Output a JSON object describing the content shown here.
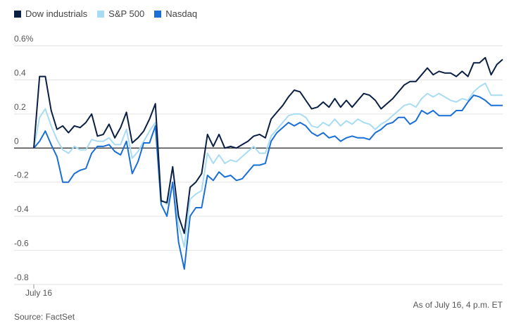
{
  "chart_data": {
    "type": "line",
    "title": "",
    "xlabel": "",
    "ylabel": "",
    "x_tick_label": "July 16",
    "ylim": [
      -0.8,
      0.6
    ],
    "y_ticks": [
      {
        "value": 0.6,
        "label": "0.6%"
      },
      {
        "value": 0.4,
        "label": "0.4"
      },
      {
        "value": 0.2,
        "label": "0.2"
      },
      {
        "value": 0,
        "label": "0"
      },
      {
        "value": -0.2,
        "label": "-0.2"
      },
      {
        "value": -0.4,
        "label": "-0.4"
      },
      {
        "value": -0.6,
        "label": "-0.6"
      },
      {
        "value": -0.8,
        "label": "-0.8"
      }
    ],
    "grid": true,
    "legend_position": "top-left",
    "series": [
      {
        "name": "Dow industrials",
        "color": "#0a1f44",
        "values": [
          0,
          0.42,
          0.42,
          0.22,
          0.11,
          0.13,
          0.09,
          0.13,
          0.12,
          0.15,
          0.2,
          0.07,
          0.08,
          0.14,
          0.06,
          0.12,
          0.21,
          0.03,
          0.06,
          0.1,
          0.17,
          0.26,
          -0.31,
          -0.32,
          -0.11,
          -0.4,
          -0.5,
          -0.23,
          -0.2,
          -0.15,
          0.08,
          0.01,
          0.08,
          0.0,
          0.01,
          0.0,
          0.02,
          0.04,
          0.07,
          0.08,
          0.06,
          0.17,
          0.21,
          0.25,
          0.3,
          0.34,
          0.33,
          0.28,
          0.23,
          0.24,
          0.27,
          0.24,
          0.29,
          0.24,
          0.28,
          0.24,
          0.28,
          0.32,
          0.31,
          0.28,
          0.23,
          0.26,
          0.29,
          0.33,
          0.37,
          0.39,
          0.39,
          0.43,
          0.47,
          0.43,
          0.45,
          0.44,
          0.44,
          0.42,
          0.45,
          0.42,
          0.5,
          0.5,
          0.53,
          0.43,
          0.49,
          0.52
        ]
      },
      {
        "name": "S&P 500",
        "color": "#a8dcf2",
        "values": [
          0,
          0.18,
          0.23,
          0.13,
          0.05,
          -0.01,
          -0.03,
          0.01,
          -0.01,
          -0.01,
          0.05,
          0.04,
          0.04,
          0.06,
          0.02,
          0.02,
          0.11,
          -0.06,
          -0.02,
          0.04,
          0.1,
          0.15,
          -0.3,
          -0.33,
          -0.21,
          -0.45,
          -0.58,
          -0.3,
          -0.27,
          -0.25,
          -0.03,
          -0.09,
          -0.04,
          -0.09,
          -0.07,
          -0.08,
          -0.05,
          -0.02,
          0.01,
          -0.03,
          -0.03,
          0.07,
          0.11,
          0.15,
          0.19,
          0.2,
          0.2,
          0.18,
          0.13,
          0.12,
          0.15,
          0.13,
          0.17,
          0.13,
          0.16,
          0.14,
          0.17,
          0.15,
          0.14,
          0.11,
          0.14,
          0.16,
          0.19,
          0.22,
          0.25,
          0.26,
          0.24,
          0.29,
          0.32,
          0.3,
          0.32,
          0.3,
          0.28,
          0.27,
          0.29,
          0.28,
          0.33,
          0.36,
          0.38,
          0.31,
          0.31,
          0.31
        ]
      },
      {
        "name": "Nasdaq",
        "color": "#1a6fd6",
        "values": [
          0,
          0.04,
          0.1,
          0.02,
          -0.05,
          -0.2,
          -0.2,
          -0.15,
          -0.13,
          -0.12,
          -0.03,
          0.01,
          0.01,
          0.02,
          -0.02,
          -0.04,
          0.04,
          -0.15,
          -0.08,
          0.03,
          0.03,
          0.13,
          -0.33,
          -0.4,
          -0.2,
          -0.55,
          -0.71,
          -0.4,
          -0.35,
          -0.35,
          -0.16,
          -0.19,
          -0.14,
          -0.17,
          -0.16,
          -0.19,
          -0.18,
          -0.14,
          -0.1,
          -0.1,
          -0.09,
          0.04,
          0.09,
          0.12,
          0.15,
          0.13,
          0.15,
          0.13,
          0.09,
          0.07,
          0.09,
          0.06,
          0.07,
          0.04,
          0.06,
          0.07,
          0.06,
          0.06,
          0.05,
          0.09,
          0.11,
          0.14,
          0.15,
          0.18,
          0.18,
          0.14,
          0.16,
          0.22,
          0.2,
          0.22,
          0.19,
          0.19,
          0.19,
          0.22,
          0.22,
          0.27,
          0.31,
          0.3,
          0.28,
          0.25,
          0.25,
          0.25
        ]
      }
    ]
  },
  "footer": {
    "source": "Source: FactSet",
    "timestamp": "As of July 16, 4 p.m. ET"
  }
}
